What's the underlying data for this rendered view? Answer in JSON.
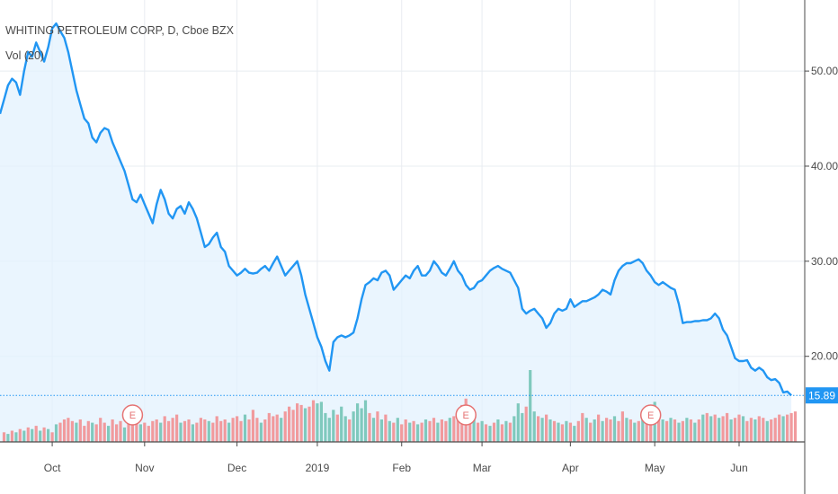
{
  "legend": {
    "title": "WHITING PETROLEUM CORP, D, Cboe BZX",
    "indicator": "Vol (20)"
  },
  "colors": {
    "line": "#2196f3",
    "area": "#e3f1fd",
    "grid": "#e8ecf1",
    "vol_up": "#7fc9bd",
    "vol_down": "#f19a9d",
    "price_badge": "#2196f3",
    "earnings": "#e57373"
  },
  "last_price_label": "15.89",
  "earnings_marker": "E",
  "chart_data": {
    "type": "line",
    "x_unit": "trading days, Sep 2018 – Jun 2019",
    "x_ticks": [
      {
        "label": "Oct",
        "day": 13
      },
      {
        "label": "Nov",
        "day": 36
      },
      {
        "label": "Dec",
        "day": 59
      },
      {
        "label": "2019",
        "day": 79
      },
      {
        "label": "Feb",
        "day": 100
      },
      {
        "label": "Mar",
        "day": 120
      },
      {
        "label": "Apr",
        "day": 142
      },
      {
        "label": "May",
        "day": 163
      },
      {
        "label": "Jun",
        "day": 184
      }
    ],
    "y_ticks": [
      20,
      30,
      40,
      50
    ],
    "y_tick_labels": [
      "20.00",
      "30.00",
      "40.00",
      "50.00"
    ],
    "ylim": [
      11,
      57
    ],
    "xlim": [
      0,
      199
    ],
    "last_price": 15.89,
    "series": [
      {
        "values": [
          45.5,
          47.0,
          48.5,
          49.2,
          48.8,
          47.5,
          50.0,
          52.0,
          51.5,
          53.0,
          52.0,
          51.0,
          52.5,
          54.5,
          55.0,
          54.2,
          53.5,
          52.0,
          50.0,
          48.0,
          46.5,
          45.0,
          44.5,
          43.0,
          42.5,
          43.5,
          44.0,
          43.8,
          42.5,
          41.5,
          40.5,
          39.5,
          38.0,
          36.5,
          36.2,
          37.0,
          36.0,
          35.0,
          34.0,
          36.0,
          37.5,
          36.5,
          35.0,
          34.5,
          35.5,
          35.8,
          35.0,
          36.2,
          35.5,
          34.5,
          33.0,
          31.5,
          31.8,
          32.5,
          33.0,
          31.5,
          31.0,
          29.5,
          29.0,
          28.5,
          28.8,
          29.2,
          28.8,
          28.7,
          28.8,
          29.2,
          29.5,
          29.0,
          29.8,
          30.5,
          29.5,
          28.5,
          29.0,
          29.5,
          30.0,
          28.5,
          26.5,
          25.0,
          23.5,
          22.0,
          21.0,
          19.5,
          18.5,
          21.5,
          22.0,
          22.2,
          22.0,
          22.2,
          22.5,
          24.0,
          26.0,
          27.5,
          27.8,
          28.2,
          28.0,
          28.8,
          29.0,
          28.5,
          27.0,
          27.5,
          28.0,
          28.5,
          28.2,
          29.0,
          29.5,
          28.5,
          28.5,
          29.0,
          30.0,
          29.5,
          28.8,
          28.5,
          29.2,
          30.0,
          29.0,
          28.5,
          27.5,
          27.0,
          27.2,
          27.8,
          28.0,
          28.5,
          29.0,
          29.3,
          29.5,
          29.2,
          29.0,
          28.8,
          28.0,
          27.2,
          25.0,
          24.5,
          24.8,
          25.0,
          24.5,
          24.0,
          23.0,
          23.5,
          24.5,
          25.0,
          24.8,
          25.0,
          26.0,
          25.2,
          25.5,
          25.8,
          25.8,
          26.0,
          26.2,
          26.5,
          27.0,
          26.8,
          26.5,
          28.0,
          29.0,
          29.5,
          29.8,
          29.8,
          30.0,
          30.2,
          29.8,
          29.0,
          28.5,
          27.8,
          27.5,
          27.8,
          27.5,
          27.2,
          27.0,
          25.5,
          23.5,
          23.6,
          23.6,
          23.7,
          23.7,
          23.8,
          23.8,
          24.0,
          24.5,
          24.0,
          22.8,
          22.2,
          21.0,
          19.8,
          19.5,
          19.5,
          19.6,
          18.8,
          18.5,
          18.8,
          18.5,
          17.8,
          17.5,
          17.6,
          17.2,
          16.2,
          16.3,
          15.89
        ]
      }
    ],
    "volume_scale_max": 28,
    "volume": [
      {
        "day": 1,
        "v": 6,
        "up": false
      },
      {
        "day": 2,
        "v": 5,
        "up": true
      },
      {
        "day": 3,
        "v": 7,
        "up": false
      },
      {
        "day": 4,
        "v": 6,
        "up": true
      },
      {
        "day": 5,
        "v": 8,
        "up": false
      },
      {
        "day": 6,
        "v": 7,
        "up": true
      },
      {
        "day": 7,
        "v": 9,
        "up": false
      },
      {
        "day": 8,
        "v": 8,
        "up": true
      },
      {
        "day": 9,
        "v": 10,
        "up": false
      },
      {
        "day": 10,
        "v": 7,
        "up": true
      },
      {
        "day": 11,
        "v": 9,
        "up": false
      },
      {
        "day": 12,
        "v": 8,
        "up": true
      },
      {
        "day": 13,
        "v": 6,
        "up": false
      },
      {
        "day": 14,
        "v": 11,
        "up": true
      },
      {
        "day": 15,
        "v": 12,
        "up": false
      },
      {
        "day": 16,
        "v": 14,
        "up": false
      },
      {
        "day": 17,
        "v": 15,
        "up": false
      },
      {
        "day": 18,
        "v": 13,
        "up": false
      },
      {
        "day": 19,
        "v": 12,
        "up": true
      },
      {
        "day": 20,
        "v": 14,
        "up": false
      },
      {
        "day": 21,
        "v": 10,
        "up": false
      },
      {
        "day": 22,
        "v": 13,
        "up": false
      },
      {
        "day": 23,
        "v": 12,
        "up": true
      },
      {
        "day": 24,
        "v": 11,
        "up": false
      },
      {
        "day": 25,
        "v": 15,
        "up": false
      },
      {
        "day": 26,
        "v": 12,
        "up": false
      },
      {
        "day": 27,
        "v": 10,
        "up": true
      },
      {
        "day": 28,
        "v": 14,
        "up": false
      },
      {
        "day": 29,
        "v": 11,
        "up": false
      },
      {
        "day": 30,
        "v": 13,
        "up": false
      },
      {
        "day": 31,
        "v": 9,
        "up": true
      },
      {
        "day": 32,
        "v": 12,
        "up": false
      },
      {
        "day": 33,
        "v": 13,
        "up": false
      },
      {
        "day": 34,
        "v": 15,
        "up": false
      },
      {
        "day": 35,
        "v": 11,
        "up": true
      },
      {
        "day": 36,
        "v": 12,
        "up": false
      },
      {
        "day": 37,
        "v": 10,
        "up": false
      },
      {
        "day": 38,
        "v": 13,
        "up": false
      },
      {
        "day": 39,
        "v": 14,
        "up": false
      },
      {
        "day": 40,
        "v": 12,
        "up": true
      },
      {
        "day": 41,
        "v": 16,
        "up": false
      },
      {
        "day": 42,
        "v": 13,
        "up": false
      },
      {
        "day": 43,
        "v": 15,
        "up": false
      },
      {
        "day": 44,
        "v": 17,
        "up": false
      },
      {
        "day": 45,
        "v": 12,
        "up": true
      },
      {
        "day": 46,
        "v": 13,
        "up": false
      },
      {
        "day": 47,
        "v": 14,
        "up": false
      },
      {
        "day": 48,
        "v": 11,
        "up": true
      },
      {
        "day": 49,
        "v": 12,
        "up": false
      },
      {
        "day": 50,
        "v": 15,
        "up": false
      },
      {
        "day": 51,
        "v": 14,
        "up": false
      },
      {
        "day": 52,
        "v": 13,
        "up": true
      },
      {
        "day": 53,
        "v": 12,
        "up": false
      },
      {
        "day": 54,
        "v": 16,
        "up": false
      },
      {
        "day": 55,
        "v": 13,
        "up": false
      },
      {
        "day": 56,
        "v": 14,
        "up": false
      },
      {
        "day": 57,
        "v": 12,
        "up": true
      },
      {
        "day": 58,
        "v": 15,
        "up": false
      },
      {
        "day": 59,
        "v": 16,
        "up": false
      },
      {
        "day": 60,
        "v": 13,
        "up": false
      },
      {
        "day": 61,
        "v": 17,
        "up": true
      },
      {
        "day": 62,
        "v": 14,
        "up": false
      },
      {
        "day": 63,
        "v": 20,
        "up": false
      },
      {
        "day": 64,
        "v": 15,
        "up": false
      },
      {
        "day": 65,
        "v": 12,
        "up": true
      },
      {
        "day": 66,
        "v": 14,
        "up": false
      },
      {
        "day": 67,
        "v": 18,
        "up": false
      },
      {
        "day": 68,
        "v": 16,
        "up": false
      },
      {
        "day": 69,
        "v": 17,
        "up": false
      },
      {
        "day": 70,
        "v": 15,
        "up": true
      },
      {
        "day": 71,
        "v": 19,
        "up": false
      },
      {
        "day": 72,
        "v": 22,
        "up": false
      },
      {
        "day": 73,
        "v": 20,
        "up": false
      },
      {
        "day": 74,
        "v": 24,
        "up": false
      },
      {
        "day": 75,
        "v": 23,
        "up": false
      },
      {
        "day": 76,
        "v": 21,
        "up": true
      },
      {
        "day": 77,
        "v": 22,
        "up": false
      },
      {
        "day": 78,
        "v": 26,
        "up": false
      },
      {
        "day": 79,
        "v": 24,
        "up": true
      },
      {
        "day": 80,
        "v": 25,
        "up": true
      },
      {
        "day": 81,
        "v": 18,
        "up": true
      },
      {
        "day": 82,
        "v": 15,
        "up": true
      },
      {
        "day": 83,
        "v": 20,
        "up": true
      },
      {
        "day": 84,
        "v": 17,
        "up": false
      },
      {
        "day": 85,
        "v": 22,
        "up": true
      },
      {
        "day": 86,
        "v": 16,
        "up": true
      },
      {
        "day": 87,
        "v": 14,
        "up": false
      },
      {
        "day": 88,
        "v": 19,
        "up": true
      },
      {
        "day": 89,
        "v": 24,
        "up": true
      },
      {
        "day": 90,
        "v": 21,
        "up": true
      },
      {
        "day": 91,
        "v": 26,
        "up": true
      },
      {
        "day": 92,
        "v": 18,
        "up": false
      },
      {
        "day": 93,
        "v": 15,
        "up": true
      },
      {
        "day": 94,
        "v": 19,
        "up": false
      },
      {
        "day": 95,
        "v": 14,
        "up": true
      },
      {
        "day": 96,
        "v": 17,
        "up": false
      },
      {
        "day": 97,
        "v": 13,
        "up": true
      },
      {
        "day": 98,
        "v": 12,
        "up": false
      },
      {
        "day": 99,
        "v": 15,
        "up": true
      },
      {
        "day": 100,
        "v": 11,
        "up": false
      },
      {
        "day": 101,
        "v": 14,
        "up": false
      },
      {
        "day": 102,
        "v": 12,
        "up": true
      },
      {
        "day": 103,
        "v": 13,
        "up": false
      },
      {
        "day": 104,
        "v": 11,
        "up": true
      },
      {
        "day": 105,
        "v": 12,
        "up": false
      },
      {
        "day": 106,
        "v": 14,
        "up": true
      },
      {
        "day": 107,
        "v": 13,
        "up": false
      },
      {
        "day": 108,
        "v": 15,
        "up": false
      },
      {
        "day": 109,
        "v": 12,
        "up": true
      },
      {
        "day": 110,
        "v": 14,
        "up": false
      },
      {
        "day": 111,
        "v": 13,
        "up": false
      },
      {
        "day": 112,
        "v": 15,
        "up": true
      },
      {
        "day": 113,
        "v": 16,
        "up": false
      },
      {
        "day": 114,
        "v": 20,
        "up": false
      },
      {
        "day": 115,
        "v": 23,
        "up": false
      },
      {
        "day": 116,
        "v": 27,
        "up": false
      },
      {
        "day": 117,
        "v": 22,
        "up": false
      },
      {
        "day": 118,
        "v": 14,
        "up": true
      },
      {
        "day": 119,
        "v": 12,
        "up": false
      },
      {
        "day": 120,
        "v": 13,
        "up": true
      },
      {
        "day": 121,
        "v": 11,
        "up": false
      },
      {
        "day": 122,
        "v": 10,
        "up": true
      },
      {
        "day": 123,
        "v": 12,
        "up": false
      },
      {
        "day": 124,
        "v": 14,
        "up": true
      },
      {
        "day": 125,
        "v": 11,
        "up": false
      },
      {
        "day": 126,
        "v": 13,
        "up": true
      },
      {
        "day": 127,
        "v": 12,
        "up": false
      },
      {
        "day": 128,
        "v": 16,
        "up": true
      },
      {
        "day": 129,
        "v": 24,
        "up": true
      },
      {
        "day": 130,
        "v": 18,
        "up": true
      },
      {
        "day": 131,
        "v": 22,
        "up": false
      },
      {
        "day": 132,
        "v": 47,
        "up": true
      },
      {
        "day": 133,
        "v": 19,
        "up": true
      },
      {
        "day": 134,
        "v": 16,
        "up": false
      },
      {
        "day": 135,
        "v": 15,
        "up": true
      },
      {
        "day": 136,
        "v": 17,
        "up": false
      },
      {
        "day": 137,
        "v": 14,
        "up": true
      },
      {
        "day": 138,
        "v": 13,
        "up": false
      },
      {
        "day": 139,
        "v": 12,
        "up": true
      },
      {
        "day": 140,
        "v": 11,
        "up": false
      },
      {
        "day": 141,
        "v": 13,
        "up": true
      },
      {
        "day": 142,
        "v": 12,
        "up": false
      },
      {
        "day": 143,
        "v": 10,
        "up": true
      },
      {
        "day": 144,
        "v": 13,
        "up": false
      },
      {
        "day": 145,
        "v": 18,
        "up": false
      },
      {
        "day": 146,
        "v": 15,
        "up": true
      },
      {
        "day": 147,
        "v": 12,
        "up": false
      },
      {
        "day": 148,
        "v": 14,
        "up": true
      },
      {
        "day": 149,
        "v": 17,
        "up": false
      },
      {
        "day": 150,
        "v": 13,
        "up": true
      },
      {
        "day": 151,
        "v": 15,
        "up": false
      },
      {
        "day": 152,
        "v": 14,
        "up": false
      },
      {
        "day": 153,
        "v": 16,
        "up": true
      },
      {
        "day": 154,
        "v": 13,
        "up": false
      },
      {
        "day": 155,
        "v": 19,
        "up": false
      },
      {
        "day": 156,
        "v": 15,
        "up": true
      },
      {
        "day": 157,
        "v": 14,
        "up": false
      },
      {
        "day": 158,
        "v": 12,
        "up": true
      },
      {
        "day": 159,
        "v": 13,
        "up": false
      },
      {
        "day": 160,
        "v": 16,
        "up": true
      },
      {
        "day": 161,
        "v": 15,
        "up": false
      },
      {
        "day": 162,
        "v": 22,
        "up": false
      },
      {
        "day": 163,
        "v": 25,
        "up": true
      },
      {
        "day": 164,
        "v": 17,
        "up": false
      },
      {
        "day": 165,
        "v": 14,
        "up": true
      },
      {
        "day": 166,
        "v": 13,
        "up": false
      },
      {
        "day": 167,
        "v": 15,
        "up": true
      },
      {
        "day": 168,
        "v": 14,
        "up": false
      },
      {
        "day": 169,
        "v": 12,
        "up": true
      },
      {
        "day": 170,
        "v": 13,
        "up": false
      },
      {
        "day": 171,
        "v": 15,
        "up": true
      },
      {
        "day": 172,
        "v": 14,
        "up": false
      },
      {
        "day": 173,
        "v": 12,
        "up": true
      },
      {
        "day": 174,
        "v": 14,
        "up": false
      },
      {
        "day": 175,
        "v": 17,
        "up": true
      },
      {
        "day": 176,
        "v": 18,
        "up": false
      },
      {
        "day": 177,
        "v": 16,
        "up": true
      },
      {
        "day": 178,
        "v": 17,
        "up": false
      },
      {
        "day": 179,
        "v": 15,
        "up": true
      },
      {
        "day": 180,
        "v": 16,
        "up": false
      },
      {
        "day": 181,
        "v": 18,
        "up": false
      },
      {
        "day": 182,
        "v": 14,
        "up": true
      },
      {
        "day": 183,
        "v": 15,
        "up": false
      },
      {
        "day": 184,
        "v": 17,
        "up": false
      },
      {
        "day": 185,
        "v": 16,
        "up": true
      },
      {
        "day": 186,
        "v": 13,
        "up": false
      },
      {
        "day": 187,
        "v": 15,
        "up": false
      },
      {
        "day": 188,
        "v": 14,
        "up": true
      },
      {
        "day": 189,
        "v": 16,
        "up": false
      },
      {
        "day": 190,
        "v": 15,
        "up": false
      },
      {
        "day": 191,
        "v": 13,
        "up": true
      },
      {
        "day": 192,
        "v": 14,
        "up": false
      },
      {
        "day": 193,
        "v": 15,
        "up": false
      },
      {
        "day": 194,
        "v": 17,
        "up": false
      },
      {
        "day": 195,
        "v": 16,
        "up": true
      },
      {
        "day": 196,
        "v": 17,
        "up": false
      },
      {
        "day": 197,
        "v": 18,
        "up": false
      },
      {
        "day": 198,
        "v": 19,
        "up": false
      }
    ],
    "earnings_days": [
      33,
      116,
      162
    ]
  }
}
